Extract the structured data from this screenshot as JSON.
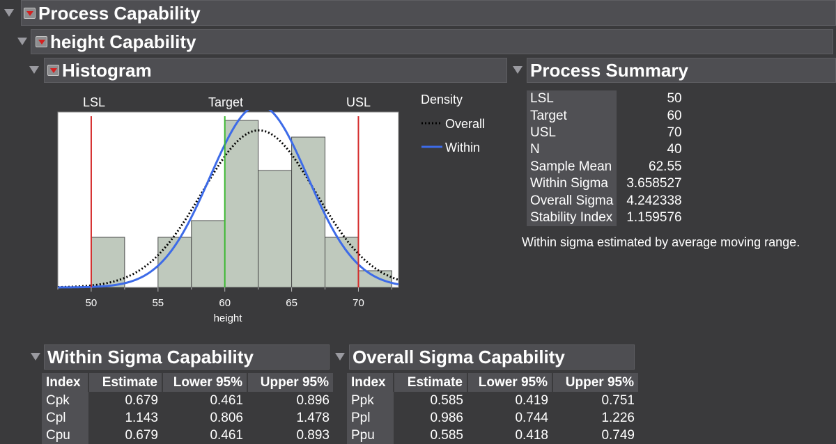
{
  "process_capability": {
    "title": "Process Capability"
  },
  "height_capability": {
    "title": "height Capability"
  },
  "histogram": {
    "title": "Histogram",
    "spec_labels": {
      "lsl": "LSL",
      "target": "Target",
      "usl": "USL"
    },
    "legend": {
      "title": "Density",
      "overall": "Overall",
      "within": "Within"
    }
  },
  "chart_data": {
    "type": "bar",
    "title": "Histogram",
    "xlabel": "height",
    "ylabel": "",
    "x_range": [
      47.5,
      73
    ],
    "x_ticks": [
      "50",
      "55",
      "60",
      "65",
      "70"
    ],
    "bins": [
      {
        "start": 50,
        "end": 52.5,
        "count": 3
      },
      {
        "start": 52.5,
        "end": 55,
        "count": 0
      },
      {
        "start": 55,
        "end": 57.5,
        "count": 3
      },
      {
        "start": 57.5,
        "end": 60,
        "count": 4
      },
      {
        "start": 60,
        "end": 62.5,
        "count": 10
      },
      {
        "start": 62.5,
        "end": 65,
        "count": 7
      },
      {
        "start": 65,
        "end": 67.5,
        "count": 9
      },
      {
        "start": 67.5,
        "end": 70,
        "count": 3
      },
      {
        "start": 70,
        "end": 72.5,
        "count": 1
      }
    ],
    "spec_limits": {
      "lsl": 50,
      "target": 60,
      "usl": 70
    },
    "curves": [
      {
        "name": "Overall",
        "mean": 62.55,
        "sigma": 4.242338,
        "style": "dotted",
        "color": "#000000"
      },
      {
        "name": "Within",
        "mean": 62.55,
        "sigma": 3.658527,
        "style": "solid",
        "color": "#3d6be8"
      }
    ],
    "colors": {
      "bar": "#bfc9bd",
      "lsl": "#d42a2a",
      "usl": "#d42a2a",
      "target": "#3cb832"
    }
  },
  "process_summary": {
    "title": "Process Summary",
    "rows": [
      {
        "label": "LSL",
        "value": "50"
      },
      {
        "label": "Target",
        "value": "60"
      },
      {
        "label": "USL",
        "value": "70"
      },
      {
        "label": "N",
        "value": "40"
      },
      {
        "label": "Sample Mean",
        "value": "62.55"
      },
      {
        "label": "Within Sigma",
        "value": "3.658527"
      },
      {
        "label": "Overall Sigma",
        "value": "4.242338"
      },
      {
        "label": "Stability Index",
        "value": "1.159576"
      }
    ],
    "note": "Within sigma estimated by average moving range."
  },
  "within_capability": {
    "title": "Within Sigma Capability",
    "headers": [
      "Index",
      "Estimate",
      "Lower 95%",
      "Upper 95%"
    ],
    "rows": [
      [
        "Cpk",
        "0.679",
        "0.461",
        "0.896"
      ],
      [
        "Cpl",
        "1.143",
        "0.806",
        "1.478"
      ],
      [
        "Cpu",
        "0.679",
        "0.461",
        "0.893"
      ]
    ]
  },
  "overall_capability": {
    "title": "Overall Sigma Capability",
    "headers": [
      "Index",
      "Estimate",
      "Lower 95%",
      "Upper 95%"
    ],
    "rows": [
      [
        "Ppk",
        "0.585",
        "0.419",
        "0.751"
      ],
      [
        "Ppl",
        "0.986",
        "0.744",
        "1.226"
      ],
      [
        "Ppu",
        "0.585",
        "0.418",
        "0.749"
      ]
    ]
  }
}
